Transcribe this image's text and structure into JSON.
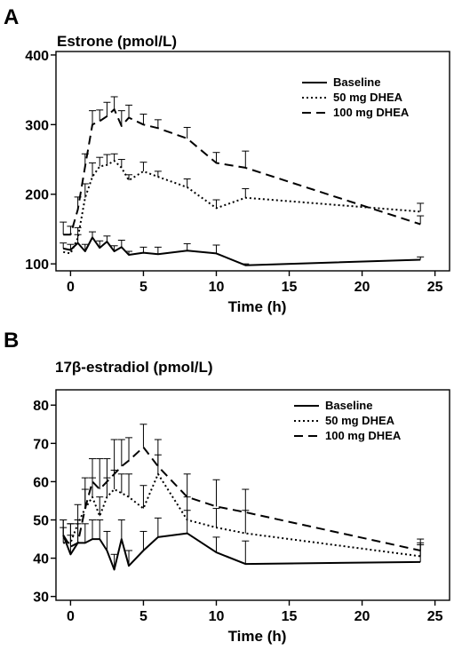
{
  "chart_data": [
    {
      "type": "line",
      "panel": "A",
      "ylabel": "Estrone  (pmol/L)",
      "xlabel": "Time (h)",
      "xlim": [
        -1,
        26
      ],
      "ylim": [
        90,
        405
      ],
      "xticks": [
        0,
        5,
        10,
        15,
        20,
        25
      ],
      "yticks": [
        100,
        200,
        300,
        400
      ],
      "legend_position": "top-right",
      "grid": false,
      "series": [
        {
          "name": "Baseline",
          "style": "solid",
          "x": [
            -0.5,
            0,
            0.5,
            1,
            1.5,
            2,
            2.5,
            3,
            3.5,
            4,
            5,
            6,
            8,
            10,
            12,
            24
          ],
          "y": [
            122,
            120,
            130,
            118,
            138,
            123,
            132,
            118,
            124,
            113,
            116,
            114,
            119,
            115,
            98,
            106
          ],
          "err": [
            8,
            8,
            12,
            10,
            8,
            10,
            8,
            8,
            10,
            5,
            8,
            10,
            10,
            12,
            2,
            4
          ]
        },
        {
          "name": "50 mg DHEA",
          "style": "dotted",
          "x": [
            -0.5,
            0,
            0.5,
            1,
            1.5,
            2,
            2.5,
            3,
            3.5,
            4,
            5,
            6,
            8,
            10,
            12,
            24
          ],
          "y": [
            117,
            115,
            137,
            195,
            225,
            240,
            242,
            248,
            238,
            220,
            233,
            225,
            210,
            180,
            195,
            175
          ],
          "err": [
            0,
            0,
            15,
            20,
            20,
            13,
            15,
            10,
            12,
            8,
            13,
            8,
            12,
            12,
            13,
            12
          ]
        },
        {
          "name": "100 mg DHEA",
          "style": "dashed",
          "x": [
            -0.5,
            0,
            0.5,
            1,
            1.5,
            2,
            2.5,
            3,
            3.5,
            4,
            5,
            6,
            8,
            10,
            12,
            24
          ],
          "y": [
            142,
            142,
            178,
            240,
            300,
            305,
            312,
            322,
            298,
            310,
            300,
            295,
            280,
            245,
            238,
            157
          ],
          "err": [
            18,
            12,
            18,
            18,
            20,
            16,
            20,
            18,
            22,
            18,
            15,
            12,
            16,
            15,
            24,
            12
          ]
        }
      ]
    },
    {
      "type": "line",
      "panel": "B",
      "ylabel": "17β-estradiol (pmol/L)",
      "xlabel": "Time (h)",
      "xlim": [
        -1,
        26
      ],
      "ylim": [
        29,
        84
      ],
      "xticks": [
        0,
        5,
        10,
        15,
        20,
        25
      ],
      "yticks": [
        30,
        40,
        50,
        60,
        70,
        80
      ],
      "legend_position": "top-right",
      "grid": false,
      "series": [
        {
          "name": "Baseline",
          "style": "solid",
          "x": [
            -0.5,
            0,
            0.5,
            1,
            1.5,
            2,
            2.5,
            3,
            3.5,
            4,
            5,
            6,
            8,
            10,
            12,
            24
          ],
          "y": [
            46,
            41,
            44,
            44,
            45,
            45,
            42,
            37,
            45,
            38,
            42,
            45.5,
            46.5,
            41.5,
            38.5,
            39
          ],
          "err": [
            4,
            5,
            5,
            5,
            5,
            5,
            5,
            4,
            5,
            4,
            5,
            5,
            6,
            4,
            6,
            5
          ]
        },
        {
          "name": "50 mg DHEA",
          "style": "dotted",
          "x": [
            -0.5,
            0,
            0.5,
            1,
            1.5,
            2,
            2.5,
            3,
            3.5,
            4,
            5,
            6,
            8,
            10,
            12,
            24
          ],
          "y": [
            44,
            44,
            49,
            53,
            56,
            51,
            56,
            58,
            57,
            56,
            53,
            62,
            50,
            48,
            46.5,
            40.5
          ],
          "err": [
            4,
            5,
            5,
            5,
            5,
            5,
            5,
            5,
            5,
            6,
            6,
            5,
            6,
            5,
            6,
            3
          ]
        },
        {
          "name": "100 mg DHEA",
          "style": "dashed",
          "x": [
            -0.5,
            0,
            0.5,
            1,
            1.5,
            2,
            2.5,
            3,
            3.5,
            4,
            5,
            6,
            8,
            10,
            12,
            24
          ],
          "y": [
            46,
            43,
            44,
            53,
            60,
            58,
            60,
            62,
            64,
            65.5,
            69,
            64,
            56,
            53.5,
            52,
            42
          ],
          "err": [
            4,
            6,
            6,
            8,
            6,
            8,
            6,
            9,
            7,
            6,
            6,
            7,
            6,
            7,
            6,
            3
          ]
        }
      ]
    }
  ]
}
